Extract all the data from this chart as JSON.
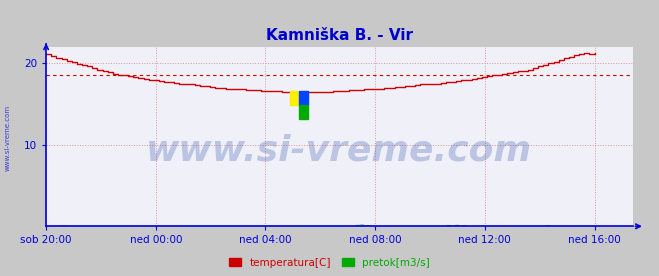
{
  "title": "Kamniška B. - Vir",
  "title_color": "#0000cc",
  "title_fontsize": 11,
  "bg_color": "#c8c8c8",
  "plot_bg_color": "#f0f0f8",
  "axis_color": "#0000dd",
  "grid_color": "#dd8888",
  "xlabel_ticks": [
    "sob 20:00",
    "ned 00:00",
    "ned 04:00",
    "ned 08:00",
    "ned 12:00",
    "ned 16:00"
  ],
  "xlabel_tick_positions": [
    0,
    72,
    144,
    216,
    288,
    360
  ],
  "xlim": [
    0,
    385
  ],
  "ylim": [
    0,
    22
  ],
  "yticks": [
    10,
    20
  ],
  "avg_line_y": 18.5,
  "avg_line_color": "#cc0000",
  "watermark_text": "www.si-vreme.com",
  "watermark_color": "#2244aa",
  "watermark_alpha": 0.25,
  "watermark_fontsize": 26,
  "legend_items": [
    {
      "label": "temperatura[C]",
      "color": "#cc0000"
    },
    {
      "label": "pretok[m3/s]",
      "color": "#00aa00"
    }
  ],
  "temp_data": [
    21.1,
    20.9,
    20.7,
    20.5,
    20.3,
    20.1,
    19.9,
    19.8,
    19.6,
    19.4,
    19.2,
    19.0,
    18.9,
    18.7,
    18.6,
    18.5,
    18.4,
    18.3,
    18.2,
    18.1,
    18.0,
    17.9,
    17.8,
    17.7,
    17.7,
    17.6,
    17.5,
    17.4,
    17.4,
    17.3,
    17.2,
    17.2,
    17.1,
    17.0,
    17.0,
    16.9,
    16.9,
    16.8,
    16.8,
    16.7,
    16.7,
    16.7,
    16.6,
    16.6,
    16.6,
    16.6,
    16.5,
    16.5,
    16.5,
    16.5,
    16.5,
    16.5,
    16.5,
    16.5,
    16.5,
    16.5,
    16.6,
    16.6,
    16.6,
    16.7,
    16.7,
    16.7,
    16.8,
    16.8,
    16.9,
    16.9,
    17.0,
    17.0,
    17.1,
    17.1,
    17.2,
    17.2,
    17.3,
    17.4,
    17.4,
    17.5,
    17.5,
    17.6,
    17.7,
    17.7,
    17.8,
    17.9,
    18.0,
    18.1,
    18.2,
    18.3,
    18.4,
    18.5,
    18.6,
    18.7,
    18.8,
    18.9,
    19.0,
    19.1,
    19.2,
    19.4,
    19.6,
    19.8,
    20.0,
    20.2,
    20.4,
    20.6,
    20.8,
    21.0,
    21.1,
    21.2,
    21.1,
    21.2
  ],
  "temp_color": "#cc0000",
  "flow_color": "#009900",
  "sideline_color": "#0000cc",
  "logo_yellow": "#ffee00",
  "logo_blue": "#0044ff",
  "logo_green": "#00aa00"
}
